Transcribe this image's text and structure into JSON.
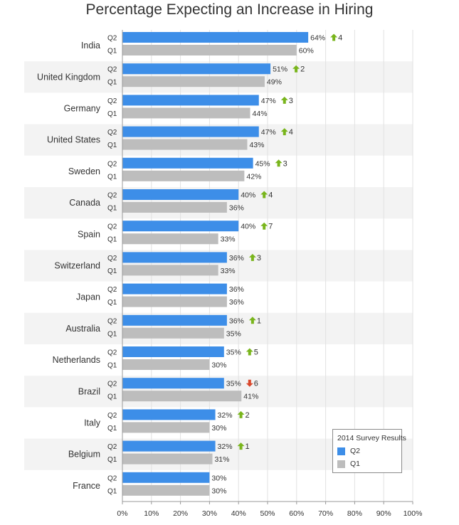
{
  "chart_data": {
    "type": "bar",
    "title": "Percentage Expecting an Increase in Hiring",
    "orientation": "horizontal",
    "categories": [
      "India",
      "United Kingdom",
      "Germany",
      "United States",
      "Sweden",
      "Canada",
      "Spain",
      "Switzerland",
      "Japan",
      "Australia",
      "Netherlands",
      "Brazil",
      "Italy",
      "Belgium",
      "France"
    ],
    "series": [
      {
        "name": "Q2",
        "color": "#3d8ee8",
        "values": [
          64,
          51,
          47,
          47,
          45,
          40,
          40,
          36,
          36,
          36,
          35,
          35,
          32,
          32,
          30
        ]
      },
      {
        "name": "Q1",
        "color": "#bdbdbd",
        "values": [
          60,
          49,
          44,
          43,
          42,
          36,
          33,
          33,
          36,
          35,
          30,
          41,
          30,
          31,
          30
        ]
      }
    ],
    "value_labels": {
      "Q2": [
        "64%",
        "51%",
        "47%",
        "47%",
        "45%",
        "40%",
        "40%",
        "36%",
        "36%",
        "36%",
        "35%",
        "35%",
        "32%",
        "32%",
        "30%"
      ],
      "Q1": [
        "60%",
        "49%",
        "44%",
        "43%",
        "42%",
        "36%",
        "33%",
        "33%",
        "36%",
        "35%",
        "30%",
        "41%",
        "30%",
        "31%",
        "30%"
      ]
    },
    "change": [
      {
        "dir": "up",
        "label": "4"
      },
      {
        "dir": "up",
        "label": "2"
      },
      {
        "dir": "up",
        "label": "3"
      },
      {
        "dir": "up",
        "label": "4"
      },
      {
        "dir": "up",
        "label": "3"
      },
      {
        "dir": "up",
        "label": "4"
      },
      {
        "dir": "up",
        "label": "7"
      },
      {
        "dir": "up",
        "label": "3"
      },
      null,
      {
        "dir": "up",
        "label": "1"
      },
      {
        "dir": "up",
        "label": "5"
      },
      {
        "dir": "down",
        "label": "6"
      },
      {
        "dir": "up",
        "label": "2"
      },
      {
        "dir": "up",
        "label": "1"
      },
      null
    ],
    "change_colors": {
      "up": "#79b51c",
      "down": "#d9472b"
    },
    "xlim": [
      0,
      100
    ],
    "x_ticks": [
      0,
      10,
      20,
      30,
      40,
      50,
      60,
      70,
      80,
      90,
      100
    ],
    "x_tick_labels": [
      "0%",
      "10%",
      "20%",
      "30%",
      "40%",
      "50%",
      "60%",
      "70%",
      "80%",
      "90%",
      "100%"
    ],
    "grid": true,
    "alternating_row_bands": true,
    "legend": {
      "title": "2014 Survey Results",
      "placement": "bottom-right",
      "items": [
        "Q2",
        "Q1"
      ]
    }
  }
}
